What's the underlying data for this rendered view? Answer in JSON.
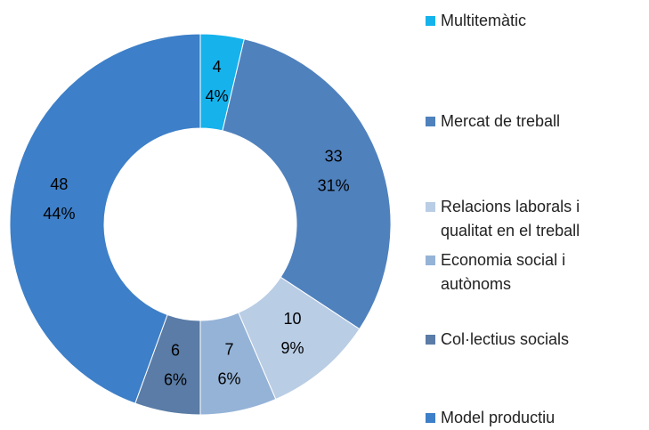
{
  "chart_data": {
    "type": "donut",
    "categories": [
      "Multitemàtic",
      "Mercat de treball",
      "Relacions laborals i qualitat en el treball",
      "Economia social i autònoms",
      "Col·lectius socials",
      "Model productiu"
    ],
    "values": [
      4,
      33,
      10,
      7,
      6,
      48
    ],
    "percent_labels": [
      "4%",
      "31%",
      "9%",
      "6%",
      "6%",
      "44%"
    ],
    "colors": [
      "#16b2ec",
      "#4f81bd",
      "#b9cde5",
      "#95b3d7",
      "#5a7ca6",
      "#3d7fc8"
    ],
    "legend": "right"
  }
}
